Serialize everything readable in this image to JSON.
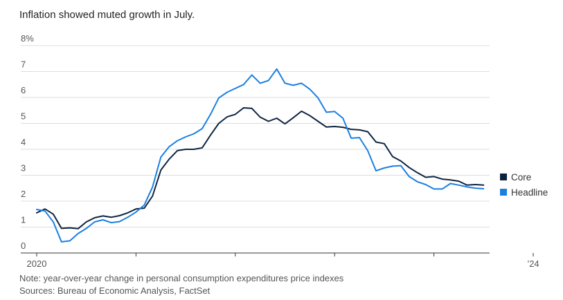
{
  "title": "Inflation showed muted growth in July.",
  "legend": [
    {
      "name": "Core",
      "color": "#0c2340"
    },
    {
      "name": "Headline",
      "color": "#1a7fe0"
    }
  ],
  "note": "Note: year-over-year change in personal consumption expenditures price indexes",
  "source": "Sources: Bureau of Economic Analysis, FactSet",
  "chart_data": {
    "type": "line",
    "title": "Inflation showed muted growth in July.",
    "xlabel": "",
    "ylabel": "",
    "ylim": [
      0,
      8
    ],
    "yticks": [
      0,
      1,
      2,
      3,
      4,
      5,
      6,
      7,
      8
    ],
    "ytick_labels": [
      "0",
      "1",
      "2",
      "3",
      "4",
      "5",
      "6",
      "7",
      "8%"
    ],
    "xticks": [
      {
        "label": "2020",
        "month_index": 0
      },
      {
        "label": "",
        "month_index": 12
      },
      {
        "label": "",
        "month_index": 24
      },
      {
        "label": "",
        "month_index": 36
      },
      {
        "label": "",
        "month_index": 48
      },
      {
        "label": "’24",
        "month_index": 60
      }
    ],
    "x_start": "Jan 2020",
    "x_end": "Jul 2024",
    "grid": true,
    "legend_position": "right",
    "series": [
      {
        "name": "Core",
        "color": "#0c2340",
        "values": [
          1.55,
          1.7,
          1.5,
          0.95,
          0.97,
          0.94,
          1.2,
          1.36,
          1.43,
          1.38,
          1.44,
          1.55,
          1.7,
          1.73,
          2.2,
          3.2,
          3.62,
          3.95,
          4.0,
          4.0,
          4.06,
          4.55,
          5.0,
          5.25,
          5.35,
          5.6,
          5.58,
          5.24,
          5.08,
          5.2,
          4.98,
          5.22,
          5.47,
          5.3,
          5.08,
          4.86,
          4.88,
          4.85,
          4.77,
          4.75,
          4.68,
          4.28,
          4.22,
          3.72,
          3.55,
          3.3,
          3.1,
          2.92,
          2.95,
          2.85,
          2.82,
          2.77,
          2.62,
          2.64,
          2.62
        ]
      },
      {
        "name": "Headline",
        "color": "#1a7fe0",
        "values": [
          1.68,
          1.62,
          1.2,
          0.43,
          0.47,
          0.75,
          0.95,
          1.2,
          1.28,
          1.17,
          1.21,
          1.38,
          1.58,
          1.85,
          2.55,
          3.7,
          4.1,
          4.33,
          4.48,
          4.6,
          4.8,
          5.35,
          5.98,
          6.2,
          6.35,
          6.5,
          6.87,
          6.55,
          6.65,
          7.1,
          6.55,
          6.47,
          6.55,
          6.32,
          5.98,
          5.43,
          5.46,
          5.2,
          4.43,
          4.45,
          3.95,
          3.17,
          3.28,
          3.35,
          3.37,
          2.95,
          2.75,
          2.64,
          2.47,
          2.47,
          2.68,
          2.62,
          2.55,
          2.5,
          2.48
        ]
      }
    ]
  }
}
